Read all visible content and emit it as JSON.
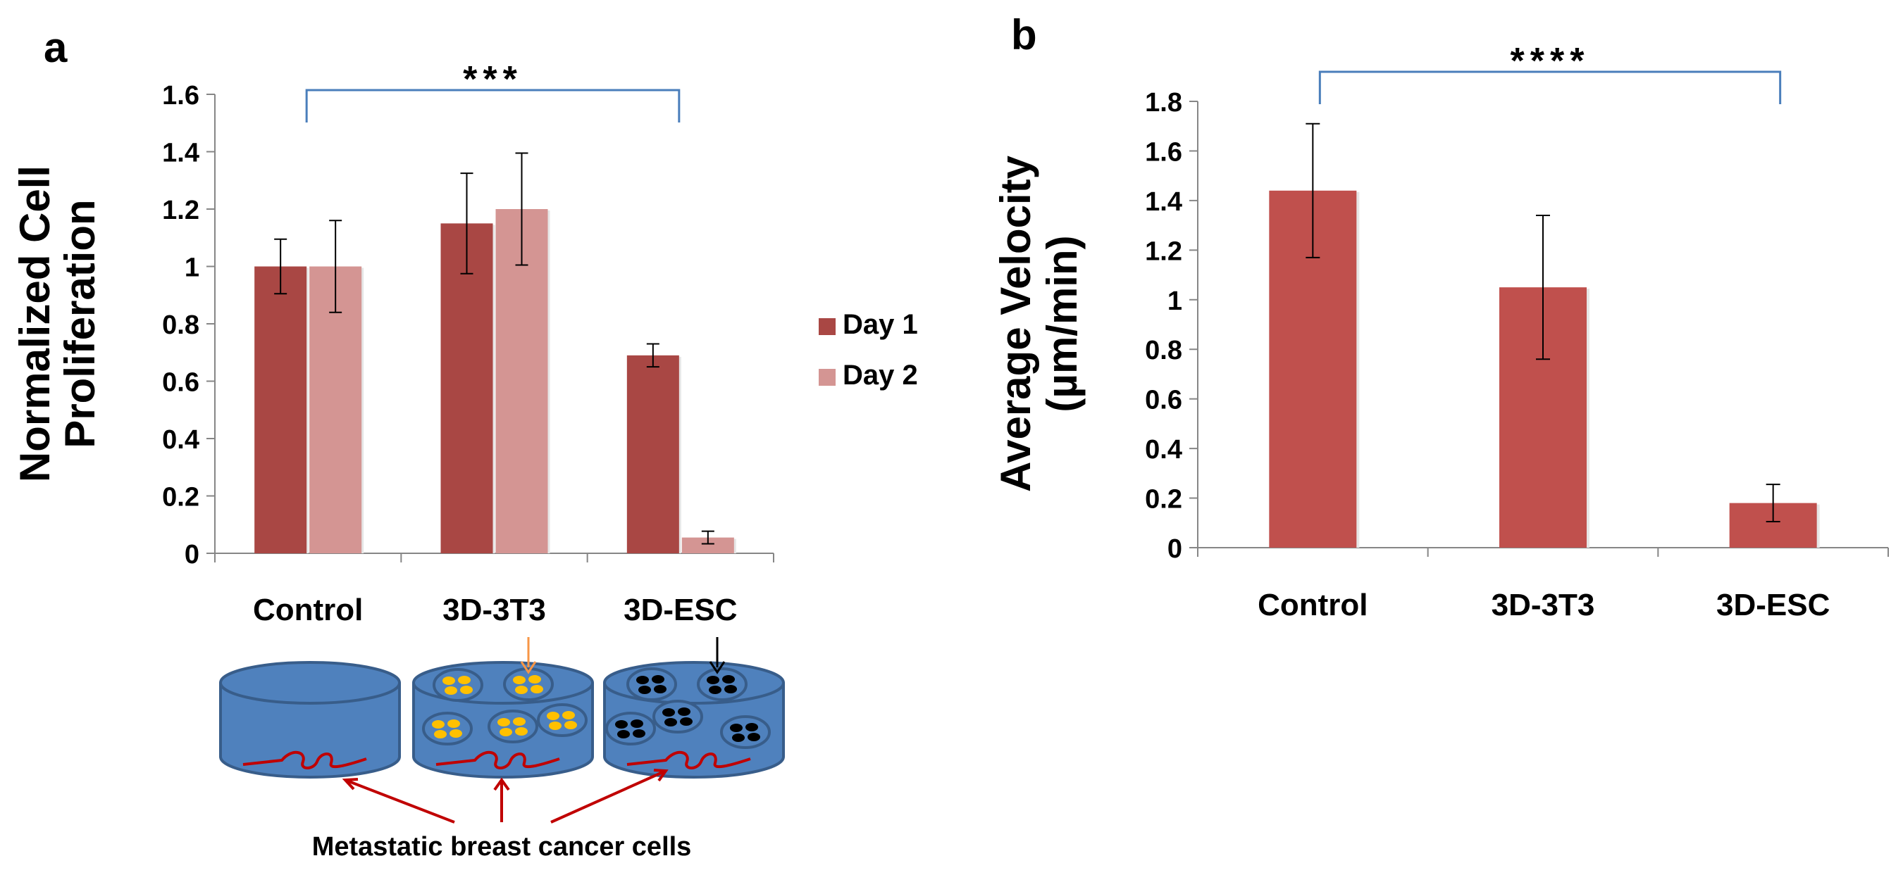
{
  "chart_data": [
    {
      "panel_label": "a",
      "type": "bar",
      "title": "",
      "xlabel": "",
      "ylabel": "Normalized Cell Proliferation",
      "ylabel_lines": [
        "Normalized Cell",
        "Proliferation"
      ],
      "ylim": [
        0,
        1.6
      ],
      "yticks": [
        0,
        0.2,
        0.4,
        0.6,
        0.8,
        1,
        1.2,
        1.4,
        1.6
      ],
      "ytick_labels": [
        "0",
        "0.2",
        "0.4",
        "0.6",
        "0.8",
        "1",
        "1.2",
        "1.4",
        "1.6"
      ],
      "categories": [
        "Control",
        "3D-3T3",
        "3D-ESC"
      ],
      "series": [
        {
          "name": "Day 1",
          "color": "#A94744",
          "values": [
            1.0,
            1.15,
            0.69
          ],
          "errors": [
            0.095,
            0.175,
            0.04
          ]
        },
        {
          "name": "Day 2",
          "color": "#D49593",
          "values": [
            1.0,
            1.2,
            0.055
          ],
          "errors": [
            0.16,
            0.195,
            0.022
          ]
        }
      ],
      "legend": {
        "position": "right",
        "entries": [
          "Day 1",
          "Day 2"
        ]
      },
      "significance": {
        "label": "***",
        "from": "Control",
        "to": "3D-ESC"
      },
      "grid": false
    },
    {
      "panel_label": "b",
      "type": "bar",
      "title": "",
      "xlabel": "",
      "ylabel": "Average Velocity (µm/min)",
      "ylabel_lines": [
        "Average Velocity",
        "(µm/min)"
      ],
      "ylim": [
        0,
        1.8
      ],
      "yticks": [
        0,
        0.2,
        0.4,
        0.6,
        0.8,
        1,
        1.2,
        1.4,
        1.6,
        1.8
      ],
      "ytick_labels": [
        "0",
        "0.2",
        "0.4",
        "0.6",
        "0.8",
        "1",
        "1.2",
        "1.4",
        "1.6",
        "1.8"
      ],
      "categories": [
        "Control",
        "3D-3T3",
        "3D-ESC"
      ],
      "series": [
        {
          "name": "Average Velocity",
          "color": "#C0504D",
          "values": [
            1.44,
            1.05,
            0.18
          ],
          "errors": [
            0.27,
            0.29,
            0.075
          ]
        }
      ],
      "significance": {
        "label": "****",
        "from": "Control",
        "to": "3D-ESC"
      },
      "grid": false
    }
  ],
  "illustration": {
    "caption": "Metastatic breast cancer cells",
    "colors": {
      "cylinder": "#4F81BD",
      "cylinder_edge": "#385D8A",
      "cancer_cell": "#C00000",
      "feeder_3t3": "#FFC000",
      "feeder_esc": "#000000",
      "arrow_3t3": "#F79646",
      "arrow_esc": "#000000"
    }
  }
}
